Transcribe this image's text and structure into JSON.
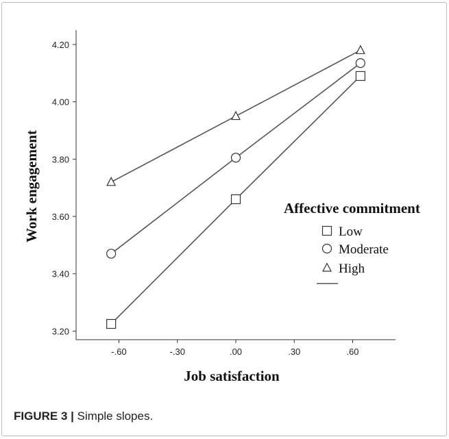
{
  "chart_data": {
    "type": "line",
    "xlabel": "Job satisfaction",
    "ylabel": "Work engagement",
    "xlim": [
      -0.82,
      0.82
    ],
    "ylim": [
      3.17,
      4.25
    ],
    "x_ticks": [
      -0.6,
      -0.3,
      0.0,
      0.3,
      0.6
    ],
    "x_tick_labels": [
      "-.60",
      "-.30",
      ".00",
      ".30",
      ".60"
    ],
    "y_ticks": [
      3.2,
      3.4,
      3.6,
      3.8,
      4.0,
      4.2
    ],
    "y_tick_labels": [
      "3.20",
      "3.40",
      "3.60",
      "3.80",
      "4.00",
      "4.20"
    ],
    "grid": false,
    "legend_title": "Affective commitment",
    "legend_position": "right",
    "x": [
      -0.64,
      0.0,
      0.64
    ],
    "series": [
      {
        "name": "Low",
        "marker": "square",
        "values": [
          3.225,
          3.66,
          4.09
        ]
      },
      {
        "name": "Moderate",
        "marker": "circle",
        "values": [
          3.47,
          3.805,
          4.135
        ]
      },
      {
        "name": "High",
        "marker": "triangle",
        "values": [
          3.72,
          3.95,
          4.18
        ]
      }
    ],
    "line_color": "#555555"
  },
  "caption": {
    "label": "FIGURE 3",
    "separator": "|",
    "text": "Simple slopes."
  }
}
